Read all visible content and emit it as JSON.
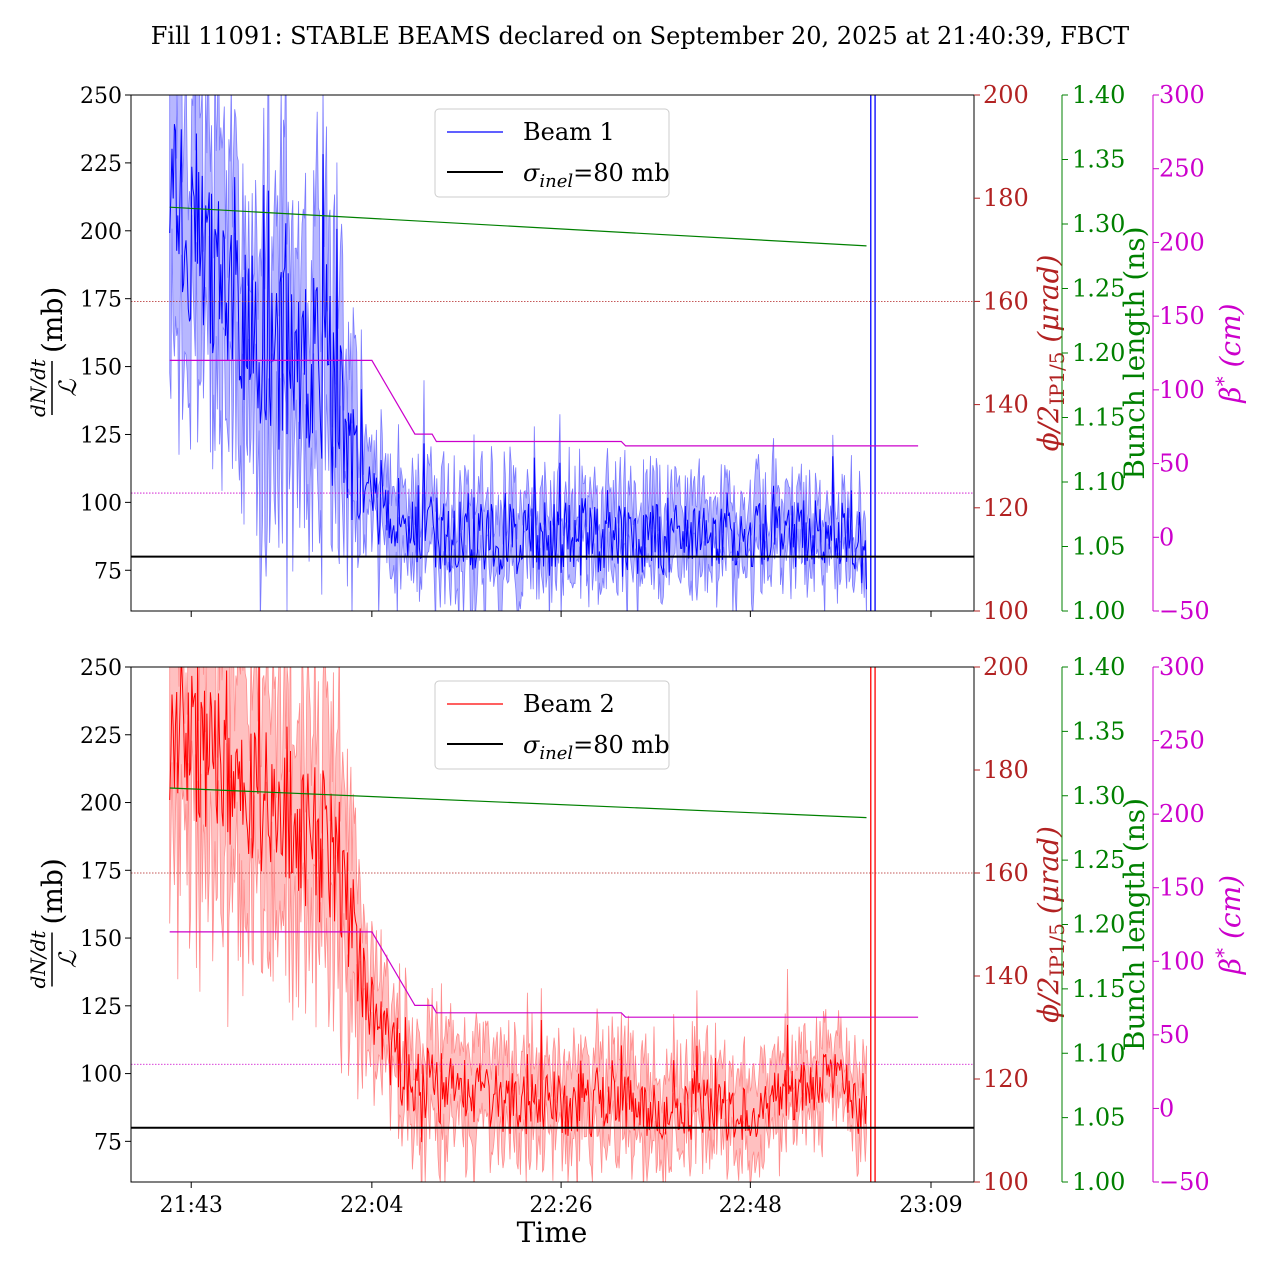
{
  "title": "Fill 11091: STABLE BEAMS declared on September 20, 2025 at 21:40:39, FBCT",
  "xlabel": "Time",
  "colors": {
    "beam1": "#0000ff",
    "beam1_band": "#7b7bff",
    "beam2": "#ff0000",
    "beam2_band": "#ff8c8c",
    "xing": "#b22222",
    "bunch": "#008000",
    "beta": "#cc00cc",
    "sigma": "#000000"
  },
  "chart_data": [
    {
      "type": "line",
      "panel": "top",
      "legend_position": "upper-center",
      "x_ticks": [
        "21:43",
        "22:04",
        "22:26",
        "22:48",
        "23:09"
      ],
      "x_tick_minutes": [
        0,
        21,
        43,
        65,
        86
      ],
      "xlim_minutes": [
        -7,
        91
      ],
      "left_axis": {
        "label_fraction_num": "dN/dt",
        "label_fraction_den": "ℒ",
        "label_unit": "(mb)",
        "ylim": [
          60,
          250
        ],
        "ticks": [
          75,
          100,
          125,
          150,
          175,
          200,
          225,
          250
        ]
      },
      "right_axes": [
        {
          "id": "xing",
          "label_main": "ϕ/2",
          "label_sub": "IP1/5",
          "label_unit": "(μrad)",
          "ylim": [
            100,
            200
          ],
          "ticks": [
            100,
            120,
            140,
            160,
            180,
            200
          ]
        },
        {
          "id": "bunch",
          "label": "Bunch length (ns)",
          "ylim": [
            1.0,
            1.4
          ],
          "ticks": [
            "1.00",
            "1.05",
            "1.10",
            "1.15",
            "1.20",
            "1.25",
            "1.30",
            "1.35",
            "1.40"
          ]
        },
        {
          "id": "beta",
          "label_main": "β",
          "label_sup": "*",
          "label_unit": "(cm)",
          "ylim": [
            -50,
            300
          ],
          "ticks": [
            "−50",
            "0",
            "50",
            "100",
            "150",
            "200",
            "250",
            "300"
          ]
        }
      ],
      "series": [
        {
          "name": "Beam 1",
          "axis": "left",
          "t_start": -2.5,
          "t_end": 78.5,
          "x_cutoff": 79.3,
          "phases": [
            [
              -2.5,
              215
            ],
            [
              2,
              185
            ],
            [
              8,
              155
            ],
            [
              14,
              150
            ],
            [
              17,
              138
            ],
            [
              19,
              110
            ],
            [
              21,
              98
            ],
            [
              24,
              95
            ],
            [
              30,
              88
            ],
            [
              45,
              86
            ],
            [
              60,
              86
            ],
            [
              70,
              88
            ],
            [
              75,
              90
            ],
            [
              78.5,
              80
            ]
          ],
          "noise_amp": [
            [
              -2.5,
              35
            ],
            [
              17,
              35
            ],
            [
              20,
              15
            ],
            [
              78.5,
              12
            ]
          ],
          "band_width": [
            [
              -2.5,
              60
            ],
            [
              17,
              55
            ],
            [
              20,
              20
            ],
            [
              78.5,
              14
            ]
          ]
        },
        {
          "name": "σinel=80 mb",
          "axis": "left",
          "value": 80
        }
      ],
      "reference_lines": [
        {
          "axis": "xing",
          "value": 160,
          "style": "dotted"
        },
        {
          "axis": "beta",
          "value": 30,
          "style": "dotted"
        }
      ],
      "step_series": [
        {
          "axis": "bunch",
          "points": [
            [
              -2.5,
              1.313
            ],
            [
              78.5,
              1.283
            ]
          ]
        },
        {
          "axis": "beta",
          "points": [
            [
              -2.5,
              120
            ],
            [
              21,
              120
            ],
            [
              26,
              70
            ],
            [
              28,
              70
            ],
            [
              28.5,
              65
            ],
            [
              50,
              65
            ],
            [
              50.5,
              62
            ],
            [
              84.5,
              62
            ]
          ]
        }
      ],
      "vertical_lines": [
        79,
        79.5
      ]
    },
    {
      "type": "line",
      "panel": "bottom",
      "legend_position": "upper-center",
      "x_ticks": [
        "21:43",
        "22:04",
        "22:26",
        "22:48",
        "23:09"
      ],
      "x_tick_minutes": [
        0,
        21,
        43,
        65,
        86
      ],
      "xlim_minutes": [
        -7,
        91
      ],
      "left_axis": {
        "label_fraction_num": "dN/dt",
        "label_fraction_den": "ℒ",
        "label_unit": "(mb)",
        "ylim": [
          60,
          250
        ],
        "ticks": [
          75,
          100,
          125,
          150,
          175,
          200,
          225,
          250
        ]
      },
      "right_axes": [
        {
          "id": "xing",
          "label_main": "ϕ/2",
          "label_sub": "IP1/5",
          "label_unit": "(μrad)",
          "ylim": [
            100,
            200
          ],
          "ticks": [
            100,
            120,
            140,
            160,
            180,
            200
          ]
        },
        {
          "id": "bunch",
          "label": "Bunch length (ns)",
          "ylim": [
            1.0,
            1.4
          ],
          "ticks": [
            "1.00",
            "1.05",
            "1.10",
            "1.15",
            "1.20",
            "1.25",
            "1.30",
            "1.35",
            "1.40"
          ]
        },
        {
          "id": "beta",
          "label_main": "β",
          "label_sup": "*",
          "label_unit": "(cm)",
          "ylim": [
            -50,
            300
          ],
          "ticks": [
            "−50",
            "0",
            "50",
            "100",
            "150",
            "200",
            "250",
            "300"
          ]
        }
      ],
      "series": [
        {
          "name": "Beam 2",
          "axis": "left",
          "t_start": -2.5,
          "t_end": 78.5,
          "x_cutoff": 79.3,
          "phases": [
            [
              -2.5,
              230
            ],
            [
              5,
              210
            ],
            [
              12,
              195
            ],
            [
              16,
              178
            ],
            [
              19,
              150
            ],
            [
              21,
              122
            ],
            [
              25,
              98
            ],
            [
              35,
              90
            ],
            [
              50,
              88
            ],
            [
              65,
              86
            ],
            [
              72,
              95
            ],
            [
              75,
              100
            ],
            [
              78.5,
              82
            ]
          ],
          "noise_amp": [
            [
              -2.5,
              30
            ],
            [
              17,
              28
            ],
            [
              21,
              14
            ],
            [
              78.5,
              10
            ]
          ],
          "band_width": [
            [
              -2.5,
              55
            ],
            [
              17,
              50
            ],
            [
              21,
              22
            ],
            [
              78.5,
              16
            ]
          ]
        },
        {
          "name": "σinel=80 mb",
          "axis": "left",
          "value": 80
        }
      ],
      "reference_lines": [
        {
          "axis": "xing",
          "value": 160,
          "style": "dotted"
        },
        {
          "axis": "beta",
          "value": 30,
          "style": "dotted"
        }
      ],
      "step_series": [
        {
          "axis": "bunch",
          "points": [
            [
              -2.5,
              1.306
            ],
            [
              78.5,
              1.283
            ]
          ]
        },
        {
          "axis": "beta",
          "points": [
            [
              -2.5,
              120
            ],
            [
              21,
              120
            ],
            [
              26,
              70
            ],
            [
              28,
              70
            ],
            [
              28.5,
              65
            ],
            [
              50,
              65
            ],
            [
              50.5,
              62
            ],
            [
              84.5,
              62
            ]
          ]
        }
      ],
      "vertical_lines": [
        79,
        79.5
      ]
    }
  ]
}
